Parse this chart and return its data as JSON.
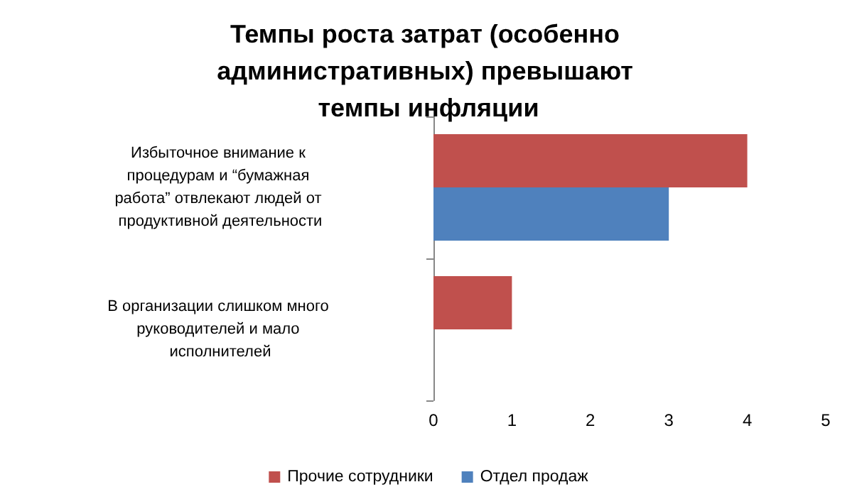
{
  "chart_data": {
    "type": "bar",
    "orientation": "horizontal",
    "title": "Темпы роста затрат (особенно административных) превышают темпы инфляции",
    "categories": [
      "Избыточное внимание к процедурам и “бумажная работа” отвлекают людей от продуктивной деятельности",
      "В организации слишком много руководителей и мало исполнителей"
    ],
    "series": [
      {
        "name": "Прочие сотрудники",
        "color": "#c0504d",
        "values": [
          4,
          1
        ]
      },
      {
        "name": "Отдел продаж",
        "color": "#4f81bd",
        "values": [
          3,
          null
        ]
      }
    ],
    "xlim": [
      0,
      5
    ],
    "xticks": [
      0,
      1,
      2,
      3,
      4,
      5
    ],
    "grid": false,
    "legend": "bottom"
  }
}
